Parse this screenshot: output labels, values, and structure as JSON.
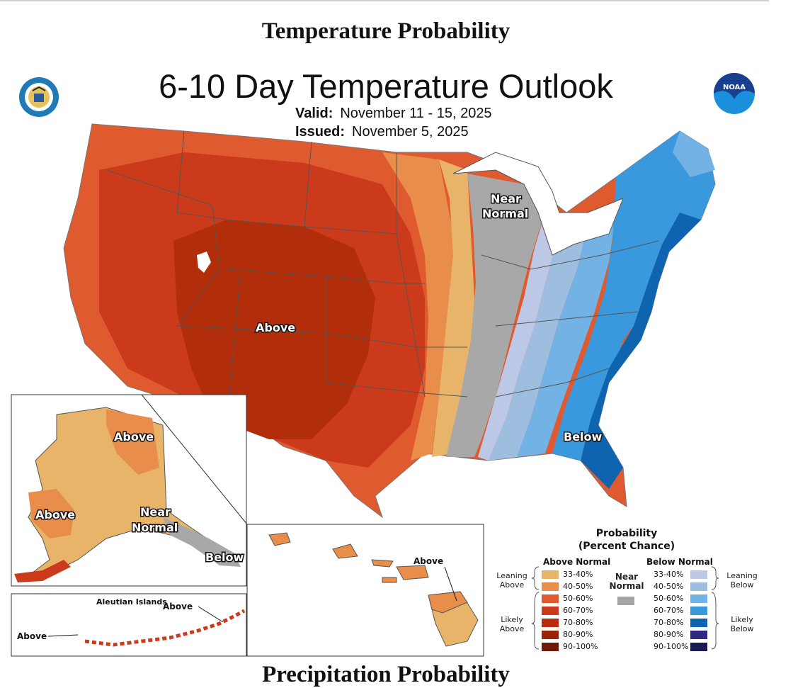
{
  "section_titles": {
    "temperature": "Temperature Probability",
    "precipitation": "Precipitation Probability"
  },
  "map": {
    "title": "6-10 Day Temperature Outlook",
    "valid_label": "Valid:",
    "valid_dates": "November 11 - 15, 2025",
    "issued_label": "Issued:",
    "issued_date": "November 5, 2025"
  },
  "logos": {
    "left": "department-of-commerce-seal",
    "right": "noaa-logo",
    "noaa_text": "NOAA"
  },
  "region_labels": {
    "conus_above": "Above",
    "conus_near_line1": "Near",
    "conus_near_line2": "Normal",
    "conus_below": "Below",
    "alaska_above_north": "Above",
    "alaska_above_west": "Above",
    "alaska_near_line1": "Near",
    "alaska_near_line2": "Normal",
    "alaska_below": "Below",
    "aleutian_title": "Aleutian Islands",
    "aleutian_above_right": "Above",
    "aleutian_above_left": "Above",
    "hawaii_above": "Above"
  },
  "legend": {
    "title_line1": "Probability",
    "title_line2": "(Percent Chance)",
    "above_header": "Above Normal",
    "below_header": "Below Normal",
    "near_line1": "Near",
    "near_line2": "Normal",
    "leaning_above": [
      "Leaning",
      "Above"
    ],
    "likely_above": [
      "Likely",
      "Above"
    ],
    "leaning_below": [
      "Leaning",
      "Below"
    ],
    "likely_below": [
      "Likely",
      "Below"
    ],
    "above_bins": [
      {
        "range": "33-40%",
        "color": "#e8b46a"
      },
      {
        "range": "40-50%",
        "color": "#e88d4a"
      },
      {
        "range": "50-60%",
        "color": "#e05a30"
      },
      {
        "range": "60-70%",
        "color": "#cc3a1c"
      },
      {
        "range": "70-80%",
        "color": "#b82e0c"
      },
      {
        "range": "80-90%",
        "color": "#9a2408"
      },
      {
        "range": "90-100%",
        "color": "#6e1a06"
      }
    ],
    "below_bins": [
      {
        "range": "33-40%",
        "color": "#bcc8e6"
      },
      {
        "range": "40-50%",
        "color": "#9ebee0"
      },
      {
        "range": "50-60%",
        "color": "#72b2e4"
      },
      {
        "range": "60-70%",
        "color": "#3a98dc"
      },
      {
        "range": "70-80%",
        "color": "#0e64ae"
      },
      {
        "range": "80-90%",
        "color": "#2e2a82"
      },
      {
        "range": "90-100%",
        "color": "#1c1a52"
      }
    ],
    "near_color": "#a5a5a5"
  }
}
